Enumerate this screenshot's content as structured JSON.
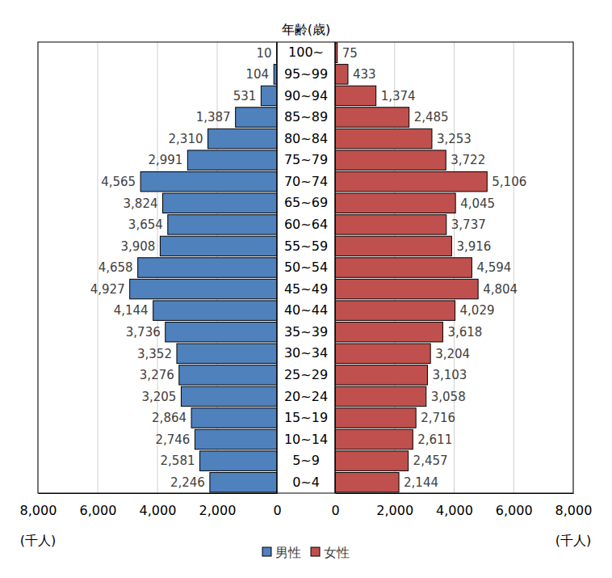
{
  "chart_data": {
    "type": "bar",
    "orientation": "horizontal",
    "ylabel": "年齢(歳)",
    "xlabel": "(千人)",
    "categories": [
      "100~",
      "95~99",
      "90~94",
      "85~89",
      "80~84",
      "75~79",
      "70~74",
      "65~69",
      "60~64",
      "55~59",
      "50~54",
      "45~49",
      "40~44",
      "35~39",
      "30~34",
      "25~29",
      "20~24",
      "15~19",
      "10~14",
      "5~9",
      "0~4"
    ],
    "series": [
      {
        "name": "男性",
        "color": "#4f81bd",
        "values": [
          10,
          104,
          531,
          1387,
          2310,
          2991,
          4565,
          3824,
          3654,
          3908,
          4658,
          4927,
          4144,
          3736,
          3352,
          3276,
          3205,
          2864,
          2746,
          2581,
          2246
        ],
        "value_labels": [
          "10",
          "104",
          "531",
          "1,387",
          "2,310",
          "2,991",
          "4,565",
          "3,824",
          "3,654",
          "3,908",
          "4,658",
          "4,927",
          "4,144",
          "3,736",
          "3,352",
          "3,276",
          "3,205",
          "2,864",
          "2,746",
          "2,581",
          "2,246"
        ]
      },
      {
        "name": "女性",
        "color": "#c0504d",
        "values": [
          75,
          433,
          1374,
          2485,
          3253,
          3722,
          5106,
          4045,
          3737,
          3916,
          4594,
          4804,
          4029,
          3618,
          3204,
          3103,
          3058,
          2716,
          2611,
          2457,
          2144
        ],
        "value_labels": [
          "75",
          "433",
          "1,374",
          "2,485",
          "3,253",
          "3,722",
          "5,106",
          "4,045",
          "3,737",
          "3,916",
          "4,594",
          "4,804",
          "4,029",
          "3,618",
          "3,204",
          "3,103",
          "3,058",
          "2,716",
          "2,611",
          "2,457",
          "2,144"
        ]
      }
    ],
    "xlim": [
      0,
      8000
    ],
    "xticks": [
      0,
      {
        "value": 2000,
        "label": "2,000"
      },
      {
        "value": 4000,
        "label": "4,000"
      },
      {
        "value": 6000,
        "label": "6,000"
      },
      {
        "value": 8000,
        "label": "8,000"
      }
    ],
    "grid": true,
    "data_labels": true,
    "legend": "bottom"
  }
}
